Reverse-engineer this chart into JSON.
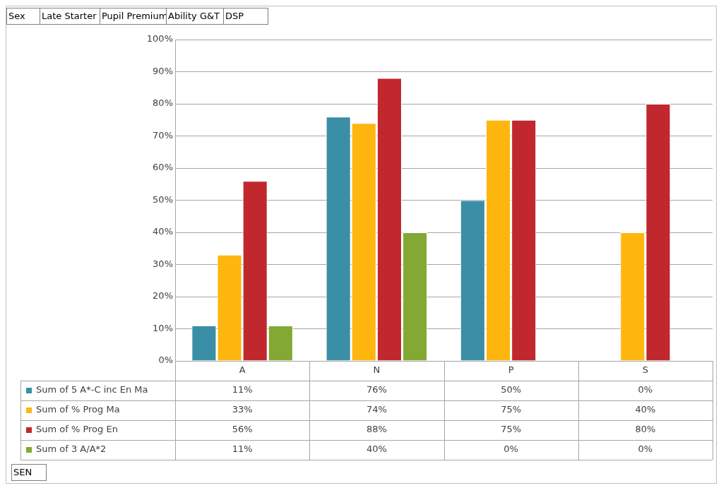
{
  "chart_data": {
    "type": "bar",
    "categories": [
      "A",
      "N",
      "P",
      "S"
    ],
    "series": [
      {
        "name": "Sum of 5 A*-C inc En Ma",
        "color": "#3a8fa6",
        "values": [
          11,
          76,
          50,
          0
        ],
        "value_labels": [
          "11%",
          "76%",
          "50%",
          "0%"
        ]
      },
      {
        "name": "Sum of % Prog Ma",
        "color": "#ffb60f",
        "values": [
          33,
          74,
          75,
          40
        ],
        "value_labels": [
          "33%",
          "74%",
          "75%",
          "40%"
        ]
      },
      {
        "name": "Sum of % Prog En",
        "color": "#c0282e",
        "values": [
          56,
          88,
          75,
          80
        ],
        "value_labels": [
          "56%",
          "88%",
          "75%",
          "80%"
        ]
      },
      {
        "name": "Sum of 3 A/A*2",
        "color": "#83a834",
        "values": [
          11,
          40,
          0,
          0
        ],
        "value_labels": [
          "11%",
          "40%",
          "0%",
          "0%"
        ]
      }
    ],
    "ylim": [
      0,
      100
    ],
    "yticks": [
      {
        "value": 0,
        "label": "0%"
      },
      {
        "value": 10,
        "label": "10%"
      },
      {
        "value": 20,
        "label": "20%"
      },
      {
        "value": 30,
        "label": "30%"
      },
      {
        "value": 40,
        "label": "40%"
      },
      {
        "value": 50,
        "label": "50%"
      },
      {
        "value": 60,
        "label": "60%"
      },
      {
        "value": 70,
        "label": "70%"
      },
      {
        "value": 80,
        "label": "80%"
      },
      {
        "value": 90,
        "label": "90%"
      },
      {
        "value": 100,
        "label": "100%"
      }
    ],
    "grid": "y",
    "legend": "bottom",
    "annotations": [
      "Sex",
      "Late Starter",
      "Pupil Premium",
      "Ability G&T",
      "DSP",
      "SEN"
    ]
  }
}
